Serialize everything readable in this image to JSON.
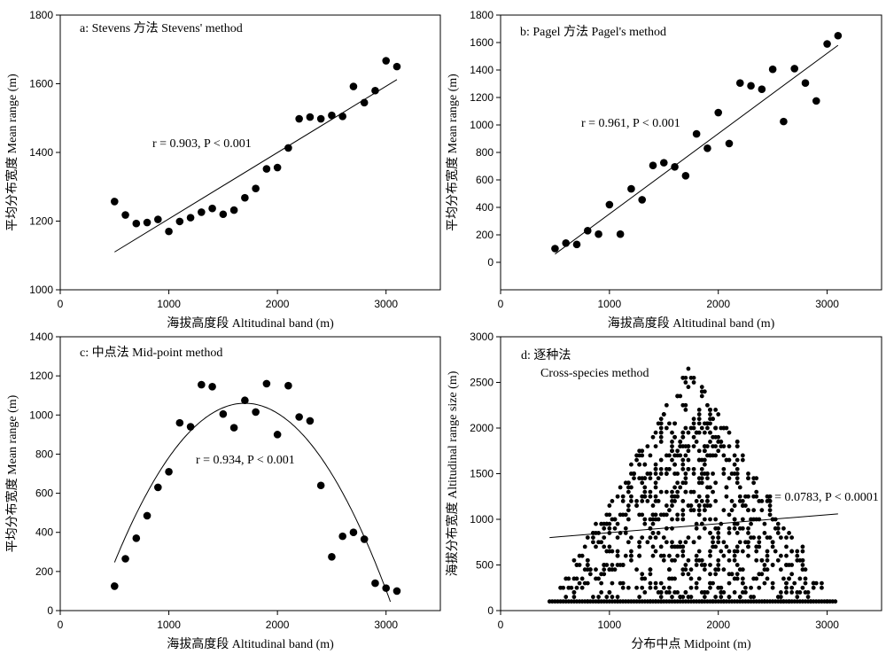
{
  "chart_data": [
    {
      "panel": "a",
      "type": "scatter",
      "title": "a: Stevens 方法  Stevens' method",
      "xlabel": "海拔高度段  Altitudinal band (m)",
      "ylabel": "平均分布宽度  Mean range (m)",
      "xlim": [
        0,
        3500
      ],
      "ylim": [
        1000,
        1800
      ],
      "xticks": [
        0,
        1000,
        2000,
        3000
      ],
      "yticks": [
        1000,
        1200,
        1400,
        1600,
        1800
      ],
      "annotation": "r = 0.903, P < 0.001",
      "fit": {
        "type": "linear",
        "x": [
          500,
          3100
        ],
        "y": [
          1110,
          1612
        ]
      },
      "x": [
        500,
        600,
        700,
        800,
        900,
        1000,
        1100,
        1200,
        1300,
        1400,
        1500,
        1600,
        1700,
        1800,
        1900,
        2000,
        2100,
        2200,
        2300,
        2400,
        2500,
        2600,
        2700,
        2800,
        2900,
        3000,
        3100
      ],
      "y": [
        1257,
        1218,
        1193,
        1196,
        1205,
        1170,
        1199,
        1210,
        1226,
        1237,
        1220,
        1232,
        1268,
        1295,
        1352,
        1356,
        1413,
        1498,
        1503,
        1498,
        1508,
        1505,
        1592,
        1545,
        1580,
        1667,
        1650
      ]
    },
    {
      "panel": "b",
      "type": "scatter",
      "title": "b: Pagel 方法  Pagel's method",
      "xlabel": "海拔高度段  Altitudinal band (m)",
      "ylabel": "平均分布宽度  Mean range (m)",
      "xlim": [
        0,
        3500
      ],
      "ylim": [
        -200,
        1800
      ],
      "xticks": [
        0,
        1000,
        2000,
        3000
      ],
      "yticks": [
        0,
        200,
        400,
        600,
        800,
        1000,
        1200,
        1400,
        1600,
        1800
      ],
      "annotation": "r = 0.961, P < 0.001",
      "fit": {
        "type": "linear",
        "x": [
          500,
          3100
        ],
        "y": [
          60,
          1580
        ]
      },
      "x": [
        500,
        600,
        700,
        800,
        900,
        1000,
        1100,
        1200,
        1300,
        1400,
        1500,
        1600,
        1700,
        1800,
        1900,
        2000,
        2100,
        2200,
        2300,
        2400,
        2500,
        2600,
        2700,
        2800,
        2900,
        3000,
        3100
      ],
      "y": [
        100,
        140,
        130,
        230,
        205,
        420,
        205,
        535,
        455,
        705,
        725,
        695,
        630,
        935,
        830,
        1090,
        865,
        1305,
        1285,
        1260,
        1405,
        1025,
        1410,
        1305,
        1175,
        1590,
        1650
      ]
    },
    {
      "panel": "c",
      "type": "scatter",
      "title": "c:  中点法  Mid-point method",
      "xlabel": "海拔高度段  Altitudinal band (m)",
      "ylabel": "平均分布宽度  Mean range (m)",
      "xlim": [
        0,
        3500
      ],
      "ylim": [
        0,
        1400
      ],
      "xticks": [
        0,
        1000,
        2000,
        3000
      ],
      "yticks": [
        0,
        200,
        400,
        600,
        800,
        1000,
        1200,
        1400
      ],
      "annotation": "r = 0.934, P < 0.001",
      "fit": {
        "type": "quadratic",
        "vertex_x": 1700,
        "vertex_y": 1060,
        "a": -0.000565,
        "x_range": [
          500,
          3040
        ]
      },
      "x": [
        500,
        600,
        700,
        800,
        900,
        1000,
        1100,
        1200,
        1300,
        1400,
        1500,
        1600,
        1700,
        1800,
        1900,
        2000,
        2100,
        2200,
        2300,
        2400,
        2500,
        2600,
        2700,
        2800,
        2900,
        3000,
        3100
      ],
      "y": [
        125,
        265,
        370,
        485,
        630,
        710,
        960,
        940,
        1155,
        1145,
        1005,
        935,
        1075,
        1015,
        1160,
        900,
        1150,
        990,
        970,
        640,
        275,
        380,
        400,
        365,
        140,
        115,
        100
      ]
    },
    {
      "panel": "d",
      "type": "scatter",
      "title": "d:  逐种法",
      "title2": "Cross-species method",
      "xlabel": "分布中点  Midpoint (m)",
      "ylabel": "海拔分布宽度  Altitudinal range size (m)",
      "xlim": [
        0,
        3500
      ],
      "ylim": [
        0,
        3000
      ],
      "xticks": [
        0,
        1000,
        2000,
        3000
      ],
      "yticks": [
        0,
        500,
        1000,
        1500,
        2000,
        2500,
        3000
      ],
      "annotation": "r = 0.0783, P < 0.0001",
      "fit": {
        "type": "linear",
        "x": [
          450,
          3100
        ],
        "y": [
          800,
          1060
        ]
      },
      "domain_note": "Triangular constraint: points fill region between midpoint 450 and 3075, apex near midpoint 1740, range 2680; y ≤ 2·(x-450) and y ≤ 2·(3075-x)",
      "apex": {
        "x": 1740,
        "y": 2680
      },
      "bounds": {
        "xmin": 450,
        "xmax": 3075,
        "ymin": 100
      }
    }
  ]
}
